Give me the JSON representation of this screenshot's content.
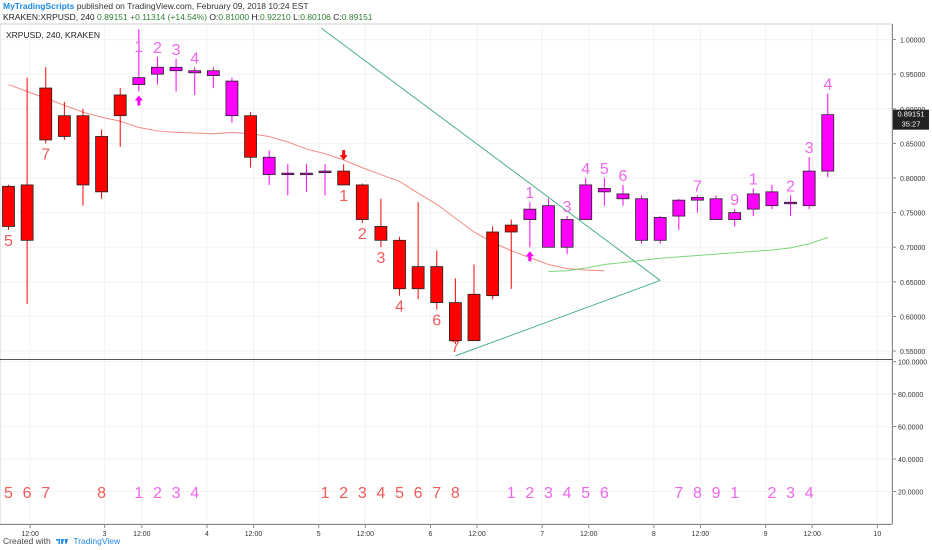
{
  "header": {
    "brand": "MyTradingScripts",
    "published_text": "published on TradingView.com, February 09, 2018 10:24 EST",
    "ohlc": {
      "symbol_line": "KRAKEN:XRPUSD, 240",
      "last": "0.89151",
      "change": "+0.11314 (+14.54%)",
      "o_label": "O:",
      "o": "0.81000",
      "h_label": "H:",
      "h": "0.92210",
      "l_label": "L:",
      "l": "0.80106",
      "c_label": "C:",
      "c": "0.89151"
    }
  },
  "chart_data": {
    "type": "candlestick",
    "title": "XRPUSD, 240, KRAKEN",
    "x_ticks": [
      "12:00",
      "3",
      "12:00",
      "4",
      "12:00",
      "5",
      "12:00",
      "6",
      "12:00",
      "7",
      "12:00",
      "8",
      "12:00",
      "9",
      "12:00",
      "10"
    ],
    "price_axis": {
      "ticks": [
        "1.00000",
        "0.95000",
        "0.90000",
        "0.85000",
        "0.80000",
        "0.75000",
        "0.70000",
        "0.65000",
        "0.60000",
        "0.55000"
      ],
      "tick_values": [
        1.0,
        0.95,
        0.9,
        0.85,
        0.8,
        0.75,
        0.7,
        0.65,
        0.6,
        0.55
      ],
      "ylim": [
        0.5385,
        1.0225
      ],
      "last_price_label": "0.89151",
      "countdown_label": "35:27"
    },
    "lower_axis": {
      "ticks": [
        "100.0000",
        "80.0000",
        "60.0000",
        "40.0000",
        "20.0000"
      ],
      "tick_values": [
        100,
        80,
        60,
        40,
        20
      ],
      "ylim": [
        0,
        101
      ]
    },
    "candles": [
      {
        "o": 0.788,
        "h": 0.79,
        "l": 0.725,
        "c": 0.73,
        "color": "red"
      },
      {
        "o": 0.79,
        "h": 0.945,
        "l": 0.618,
        "c": 0.71,
        "color": "red"
      },
      {
        "o": 0.93,
        "h": 0.96,
        "l": 0.85,
        "c": 0.855,
        "color": "red"
      },
      {
        "o": 0.89,
        "h": 0.91,
        "l": 0.855,
        "c": 0.86,
        "color": "red"
      },
      {
        "o": 0.89,
        "h": 0.9,
        "l": 0.76,
        "c": 0.79,
        "color": "red"
      },
      {
        "o": 0.86,
        "h": 0.87,
        "l": 0.77,
        "c": 0.78,
        "color": "red"
      },
      {
        "o": 0.92,
        "h": 0.93,
        "l": 0.845,
        "c": 0.89,
        "color": "red"
      },
      {
        "o": 0.935,
        "h": 1.015,
        "l": 0.925,
        "c": 0.945,
        "color": "magenta"
      },
      {
        "o": 0.95,
        "h": 0.975,
        "l": 0.935,
        "c": 0.96,
        "color": "magenta"
      },
      {
        "o": 0.955,
        "h": 0.972,
        "l": 0.925,
        "c": 0.96,
        "color": "magenta"
      },
      {
        "o": 0.955,
        "h": 0.96,
        "l": 0.92,
        "c": 0.952,
        "color": "magenta"
      },
      {
        "o": 0.955,
        "h": 0.96,
        "l": 0.93,
        "c": 0.948,
        "color": "magenta"
      },
      {
        "o": 0.94,
        "h": 0.945,
        "l": 0.88,
        "c": 0.89,
        "color": "magenta"
      },
      {
        "o": 0.89,
        "h": 0.895,
        "l": 0.815,
        "c": 0.83,
        "color": "red"
      },
      {
        "o": 0.83,
        "h": 0.84,
        "l": 0.79,
        "c": 0.805,
        "color": "magenta"
      },
      {
        "o": 0.807,
        "h": 0.82,
        "l": 0.775,
        "c": 0.805,
        "color": "magenta"
      },
      {
        "o": 0.807,
        "h": 0.82,
        "l": 0.78,
        "c": 0.807,
        "color": "magenta"
      },
      {
        "o": 0.808,
        "h": 0.82,
        "l": 0.775,
        "c": 0.81,
        "color": "magenta"
      },
      {
        "o": 0.81,
        "h": 0.82,
        "l": 0.79,
        "c": 0.79,
        "color": "red"
      },
      {
        "o": 0.79,
        "h": 0.792,
        "l": 0.735,
        "c": 0.74,
        "color": "red"
      },
      {
        "o": 0.73,
        "h": 0.77,
        "l": 0.7,
        "c": 0.71,
        "color": "red"
      },
      {
        "o": 0.71,
        "h": 0.715,
        "l": 0.63,
        "c": 0.64,
        "color": "red"
      },
      {
        "o": 0.672,
        "h": 0.765,
        "l": 0.625,
        "c": 0.64,
        "color": "red"
      },
      {
        "o": 0.672,
        "h": 0.695,
        "l": 0.61,
        "c": 0.62,
        "color": "red"
      },
      {
        "o": 0.62,
        "h": 0.655,
        "l": 0.56,
        "c": 0.565,
        "color": "red"
      },
      {
        "o": 0.632,
        "h": 0.675,
        "l": 0.565,
        "c": 0.565,
        "color": "red"
      },
      {
        "o": 0.63,
        "h": 0.73,
        "l": 0.625,
        "c": 0.722,
        "color": "red"
      },
      {
        "o": 0.722,
        "h": 0.74,
        "l": 0.64,
        "c": 0.732,
        "color": "red"
      },
      {
        "o": 0.74,
        "h": 0.765,
        "l": 0.7,
        "c": 0.755,
        "color": "magenta"
      },
      {
        "o": 0.76,
        "h": 0.77,
        "l": 0.7,
        "c": 0.7,
        "color": "magenta"
      },
      {
        "o": 0.74,
        "h": 0.745,
        "l": 0.69,
        "c": 0.7,
        "color": "magenta"
      },
      {
        "o": 0.74,
        "h": 0.8,
        "l": 0.74,
        "c": 0.79,
        "color": "magenta"
      },
      {
        "o": 0.78,
        "h": 0.8,
        "l": 0.76,
        "c": 0.785,
        "color": "magenta"
      },
      {
        "o": 0.777,
        "h": 0.79,
        "l": 0.76,
        "c": 0.77,
        "color": "magenta"
      },
      {
        "o": 0.77,
        "h": 0.775,
        "l": 0.705,
        "c": 0.71,
        "color": "magenta"
      },
      {
        "o": 0.71,
        "h": 0.745,
        "l": 0.705,
        "c": 0.743,
        "color": "magenta"
      },
      {
        "o": 0.745,
        "h": 0.77,
        "l": 0.725,
        "c": 0.768,
        "color": "magenta"
      },
      {
        "o": 0.768,
        "h": 0.775,
        "l": 0.75,
        "c": 0.772,
        "color": "magenta"
      },
      {
        "o": 0.77,
        "h": 0.775,
        "l": 0.74,
        "c": 0.74,
        "color": "magenta"
      },
      {
        "o": 0.74,
        "h": 0.755,
        "l": 0.73,
        "c": 0.75,
        "color": "magenta"
      },
      {
        "o": 0.755,
        "h": 0.785,
        "l": 0.745,
        "c": 0.777,
        "color": "magenta"
      },
      {
        "o": 0.76,
        "h": 0.79,
        "l": 0.755,
        "c": 0.78,
        "color": "magenta"
      },
      {
        "o": 0.765,
        "h": 0.775,
        "l": 0.745,
        "c": 0.765,
        "color": "magenta"
      },
      {
        "o": 0.76,
        "h": 0.83,
        "l": 0.755,
        "c": 0.81,
        "color": "magenta"
      },
      {
        "o": 0.81,
        "h": 0.922,
        "l": 0.801,
        "c": 0.8915,
        "color": "magenta"
      }
    ],
    "moving_averages": [
      {
        "color": "#f28b82",
        "values": [
          0.935,
          0.925,
          0.915,
          0.905,
          0.895,
          0.888,
          0.882,
          0.873,
          0.868,
          0.866,
          0.865,
          0.864,
          0.866,
          0.864,
          0.86,
          0.852,
          0.842,
          0.835,
          0.826,
          0.815,
          0.805,
          0.795,
          0.778,
          0.762,
          0.742,
          0.722,
          0.707,
          0.695,
          0.685,
          0.675,
          0.669,
          0.667,
          0.666
        ]
      },
      {
        "color": "#7bd67b",
        "values": [
          0.665,
          0.666,
          0.67,
          0.675,
          0.678,
          0.681,
          0.684,
          0.686,
          0.688,
          0.69,
          0.692,
          0.694,
          0.696,
          0.699,
          0.705,
          0.714
        ]
      }
    ],
    "trendlines": [
      {
        "x1": 16.8,
        "y1": 1.0165,
        "x2": 35.0,
        "y2": 0.652
      },
      {
        "x1": 24.0,
        "y1": 0.543,
        "x2": 35.0,
        "y2": 0.652
      }
    ],
    "setup_labels": [
      {
        "text": "5",
        "i": 0,
        "pos": "below",
        "color": "red"
      },
      {
        "text": "7",
        "i": 2,
        "pos": "below",
        "color": "red"
      },
      {
        "text": "1",
        "i": 7,
        "pos": "above",
        "color": "magenta"
      },
      {
        "text": "2",
        "i": 8,
        "pos": "above",
        "color": "magenta"
      },
      {
        "text": "3",
        "i": 9,
        "pos": "above",
        "color": "magenta"
      },
      {
        "text": "4",
        "i": 10,
        "pos": "above",
        "color": "magenta"
      },
      {
        "text": "1",
        "i": 18,
        "pos": "below",
        "color": "red"
      },
      {
        "text": "2",
        "i": 19,
        "pos": "below",
        "color": "red"
      },
      {
        "text": "3",
        "i": 20,
        "pos": "below",
        "color": "red"
      },
      {
        "text": "4",
        "i": 21,
        "pos": "below",
        "color": "red"
      },
      {
        "text": "6",
        "i": 23,
        "pos": "below",
        "color": "red"
      },
      {
        "text": "7",
        "i": 24,
        "pos": "below",
        "color": "red"
      },
      {
        "text": "1",
        "i": 28,
        "pos": "above",
        "color": "magenta"
      },
      {
        "text": "3",
        "i": 30,
        "pos": "above",
        "color": "magenta"
      },
      {
        "text": "4",
        "i": 31,
        "pos": "above",
        "color": "magenta"
      },
      {
        "text": "5",
        "i": 32,
        "pos": "above",
        "color": "magenta"
      },
      {
        "text": "6",
        "i": 33,
        "pos": "above",
        "color": "magenta"
      },
      {
        "text": "7",
        "i": 37,
        "pos": "above",
        "color": "magenta"
      },
      {
        "text": "9",
        "i": 39,
        "pos": "above",
        "color": "magenta"
      },
      {
        "text": "1",
        "i": 40,
        "pos": "above",
        "color": "magenta"
      },
      {
        "text": "2",
        "i": 42,
        "pos": "above",
        "color": "magenta"
      },
      {
        "text": "3",
        "i": 43,
        "pos": "above",
        "color": "magenta"
      },
      {
        "text": "4",
        "i": 44,
        "pos": "above",
        "color": "magenta"
      }
    ],
    "arrows": [
      {
        "i": 7,
        "dir": "up",
        "color": "magenta"
      },
      {
        "i": 18,
        "dir": "down",
        "color": "red"
      },
      {
        "i": 28,
        "dir": "up",
        "color": "magenta"
      }
    ],
    "lower_counts": [
      {
        "text": "5",
        "i": 0,
        "color": "red"
      },
      {
        "text": "6",
        "i": 1,
        "color": "red"
      },
      {
        "text": "7",
        "i": 2,
        "color": "red"
      },
      {
        "text": "8",
        "i": 5,
        "color": "red"
      },
      {
        "text": "1",
        "i": 7,
        "color": "magenta"
      },
      {
        "text": "2",
        "i": 8,
        "color": "magenta"
      },
      {
        "text": "3",
        "i": 9,
        "color": "magenta"
      },
      {
        "text": "4",
        "i": 10,
        "color": "magenta"
      },
      {
        "text": "1",
        "i": 17,
        "color": "red"
      },
      {
        "text": "2",
        "i": 18,
        "color": "red"
      },
      {
        "text": "3",
        "i": 19,
        "color": "red"
      },
      {
        "text": "4",
        "i": 20,
        "color": "red"
      },
      {
        "text": "5",
        "i": 21,
        "color": "red"
      },
      {
        "text": "6",
        "i": 22,
        "color": "red"
      },
      {
        "text": "7",
        "i": 23,
        "color": "red"
      },
      {
        "text": "8",
        "i": 24,
        "color": "red"
      },
      {
        "text": "1",
        "i": 27,
        "color": "magenta"
      },
      {
        "text": "2",
        "i": 28,
        "color": "magenta"
      },
      {
        "text": "3",
        "i": 29,
        "color": "magenta"
      },
      {
        "text": "4",
        "i": 30,
        "color": "magenta"
      },
      {
        "text": "5",
        "i": 31,
        "color": "magenta"
      },
      {
        "text": "6",
        "i": 32,
        "color": "magenta"
      },
      {
        "text": "7",
        "i": 36,
        "color": "magenta"
      },
      {
        "text": "8",
        "i": 37,
        "color": "magenta"
      },
      {
        "text": "9",
        "i": 38,
        "color": "magenta"
      },
      {
        "text": "1",
        "i": 39,
        "color": "magenta"
      },
      {
        "text": "2",
        "i": 41,
        "color": "magenta"
      },
      {
        "text": "3",
        "i": 42,
        "color": "magenta"
      },
      {
        "text": "4",
        "i": 43,
        "color": "magenta"
      }
    ],
    "colors": {
      "red": "#ff0000",
      "red_label": "#f05a5a",
      "magenta": "#ff00ff",
      "magenta_label": "#ee66ee",
      "trendline": "#4caf8f",
      "price_tag": "#222222",
      "grid": "#f2f2f2"
    }
  },
  "footer": {
    "created_with": "Created with",
    "brand": "TradingView"
  }
}
